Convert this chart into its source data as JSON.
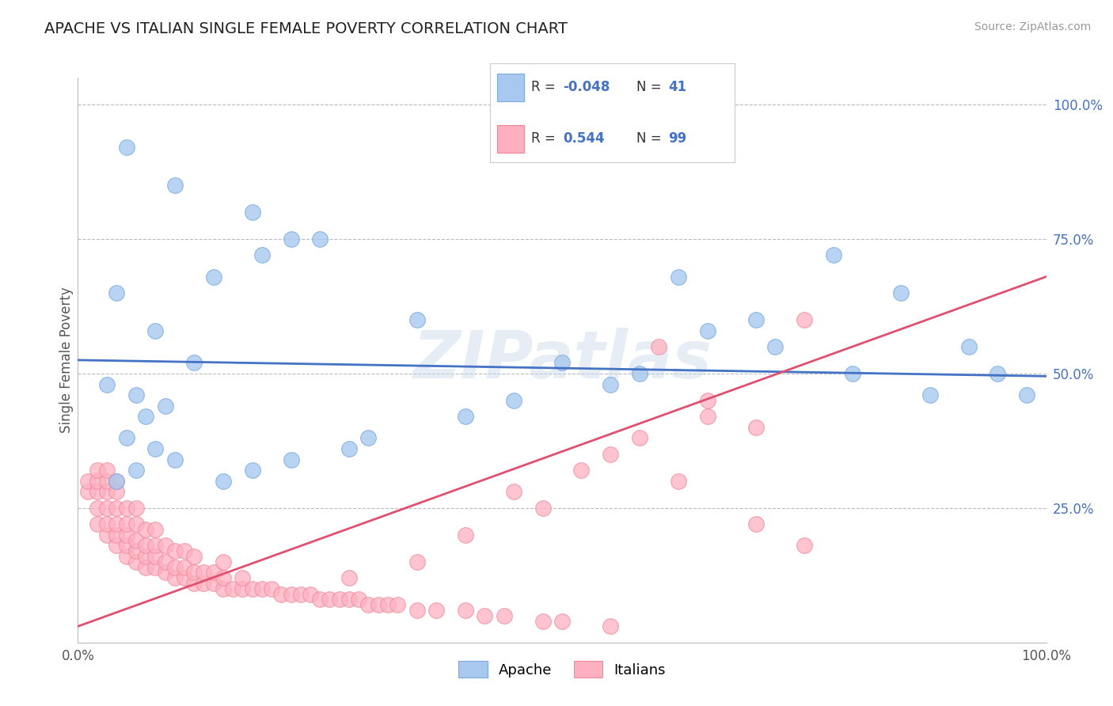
{
  "title": "APACHE VS ITALIAN SINGLE FEMALE POVERTY CORRELATION CHART",
  "source": "Source: ZipAtlas.com",
  "ylabel": "Single Female Poverty",
  "xlim": [
    0,
    1
  ],
  "ylim": [
    0,
    1.05
  ],
  "ytick_vals": [
    0.25,
    0.5,
    0.75,
    1.0
  ],
  "ytick_labels": [
    "25.0%",
    "50.0%",
    "75.0%",
    "100.0%"
  ],
  "xtick_vals": [
    0.0,
    1.0
  ],
  "xtick_labels": [
    "0.0%",
    "100.0%"
  ],
  "blue_line_color": "#4472c4",
  "pink_line_color": "#e05070",
  "apache_face": "#a8c8f0",
  "apache_edge": "#7aaadd",
  "italians_face": "#ffb0c0",
  "italians_edge": "#ee8899",
  "grid_color": "#bbbbbb",
  "bg_color": "#ffffff",
  "title_color": "#222222",
  "axis_color": "#555555",
  "yticklabel_color": "#4472c4",
  "watermark": "ZIPatlas",
  "legend_R1": "-0.048",
  "legend_N1": "41",
  "legend_R2": "0.544",
  "legend_N2": "99",
  "apache_x": [
    0.05,
    0.1,
    0.18,
    0.22,
    0.04,
    0.08,
    0.12,
    0.03,
    0.06,
    0.09,
    0.07,
    0.05,
    0.08,
    0.1,
    0.06,
    0.04,
    0.14,
    0.19,
    0.25,
    0.35,
    0.55,
    0.62,
    0.7,
    0.78,
    0.85,
    0.92,
    0.8,
    0.88,
    0.95,
    0.98,
    0.72,
    0.65,
    0.58,
    0.5,
    0.45,
    0.4,
    0.3,
    0.22,
    0.28,
    0.15,
    0.18
  ],
  "apache_y": [
    0.92,
    0.85,
    0.8,
    0.75,
    0.65,
    0.58,
    0.52,
    0.48,
    0.46,
    0.44,
    0.42,
    0.38,
    0.36,
    0.34,
    0.32,
    0.3,
    0.68,
    0.72,
    0.75,
    0.6,
    0.48,
    0.68,
    0.6,
    0.72,
    0.65,
    0.55,
    0.5,
    0.46,
    0.5,
    0.46,
    0.55,
    0.58,
    0.5,
    0.52,
    0.45,
    0.42,
    0.38,
    0.34,
    0.36,
    0.3,
    0.32
  ],
  "italians_x": [
    0.01,
    0.01,
    0.02,
    0.02,
    0.02,
    0.02,
    0.02,
    0.03,
    0.03,
    0.03,
    0.03,
    0.03,
    0.03,
    0.04,
    0.04,
    0.04,
    0.04,
    0.04,
    0.04,
    0.05,
    0.05,
    0.05,
    0.05,
    0.05,
    0.06,
    0.06,
    0.06,
    0.06,
    0.06,
    0.07,
    0.07,
    0.07,
    0.07,
    0.08,
    0.08,
    0.08,
    0.08,
    0.09,
    0.09,
    0.09,
    0.1,
    0.1,
    0.1,
    0.11,
    0.11,
    0.11,
    0.12,
    0.12,
    0.12,
    0.13,
    0.13,
    0.14,
    0.14,
    0.15,
    0.15,
    0.15,
    0.16,
    0.17,
    0.17,
    0.18,
    0.19,
    0.2,
    0.21,
    0.22,
    0.23,
    0.24,
    0.25,
    0.26,
    0.27,
    0.28,
    0.29,
    0.3,
    0.31,
    0.32,
    0.33,
    0.35,
    0.37,
    0.4,
    0.42,
    0.44,
    0.48,
    0.5,
    0.55,
    0.6,
    0.65,
    0.7,
    0.75,
    0.55,
    0.62,
    0.48,
    0.4,
    0.35,
    0.28,
    0.45,
    0.52,
    0.58,
    0.65,
    0.7,
    0.75
  ],
  "italians_y": [
    0.28,
    0.3,
    0.22,
    0.25,
    0.28,
    0.3,
    0.32,
    0.2,
    0.22,
    0.25,
    0.28,
    0.3,
    0.32,
    0.18,
    0.2,
    0.22,
    0.25,
    0.28,
    0.3,
    0.16,
    0.18,
    0.2,
    0.22,
    0.25,
    0.15,
    0.17,
    0.19,
    0.22,
    0.25,
    0.14,
    0.16,
    0.18,
    0.21,
    0.14,
    0.16,
    0.18,
    0.21,
    0.13,
    0.15,
    0.18,
    0.12,
    0.14,
    0.17,
    0.12,
    0.14,
    0.17,
    0.11,
    0.13,
    0.16,
    0.11,
    0.13,
    0.11,
    0.13,
    0.1,
    0.12,
    0.15,
    0.1,
    0.1,
    0.12,
    0.1,
    0.1,
    0.1,
    0.09,
    0.09,
    0.09,
    0.09,
    0.08,
    0.08,
    0.08,
    0.08,
    0.08,
    0.07,
    0.07,
    0.07,
    0.07,
    0.06,
    0.06,
    0.06,
    0.05,
    0.05,
    0.04,
    0.04,
    0.03,
    0.55,
    0.45,
    0.4,
    0.6,
    0.35,
    0.3,
    0.25,
    0.2,
    0.15,
    0.12,
    0.28,
    0.32,
    0.38,
    0.42,
    0.22,
    0.18
  ],
  "blue_line_x0": 0.0,
  "blue_line_y0": 0.525,
  "blue_line_x1": 1.0,
  "blue_line_y1": 0.495,
  "pink_line_x0": 0.0,
  "pink_line_x1": 1.0,
  "pink_line_y0": 0.03,
  "pink_line_y1": 0.68
}
